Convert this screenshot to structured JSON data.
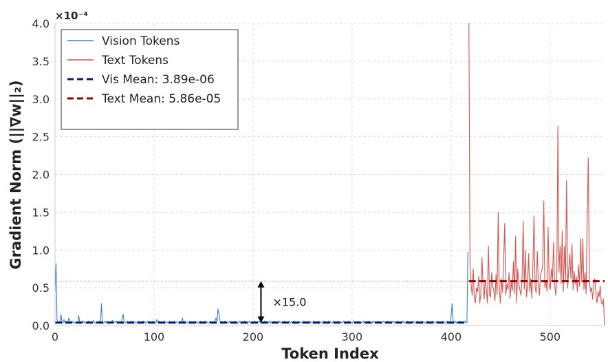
{
  "chart_data": {
    "type": "line",
    "xlabel": "Token Index",
    "ylabel": "Gradient Norm (||∇w||₂)",
    "y_offset_label": "×10⁻⁴",
    "xlim": [
      0,
      555
    ],
    "ylim": [
      0,
      4.0
    ],
    "xticks": [
      0,
      100,
      200,
      300,
      400,
      500
    ],
    "yticks": [
      0.0,
      0.5,
      1.0,
      1.5,
      2.0,
      2.5,
      3.0,
      3.5,
      4.0
    ],
    "grid": true,
    "legend_position": "top-left",
    "series": [
      {
        "name": "Vision Tokens",
        "color": "#3b82c4",
        "style": "solid",
        "x_range": [
          0,
          417
        ],
        "values": [
          0.42,
          0.82,
          0.08,
          0.05,
          0.03,
          0.04,
          0.15,
          0.05,
          0.03,
          0.08,
          0.04,
          0.06,
          0.03,
          0.05,
          0.1,
          0.04,
          0.03,
          0.06,
          0.04,
          0.05,
          0.03,
          0.04,
          0.03,
          0.05,
          0.13,
          0.04,
          0.03,
          0.05,
          0.04,
          0.06,
          0.03,
          0.04,
          0.05,
          0.03,
          0.06,
          0.04,
          0.03,
          0.05,
          0.04,
          0.07,
          0.03,
          0.04,
          0.05,
          0.03,
          0.04,
          0.06,
          0.03,
          0.29,
          0.04,
          0.03,
          0.05,
          0.04,
          0.06,
          0.03,
          0.04,
          0.05,
          0.03,
          0.04,
          0.07,
          0.03,
          0.05,
          0.04,
          0.06,
          0.03,
          0.04,
          0.05,
          0.03,
          0.04,
          0.1,
          0.15,
          0.05,
          0.04,
          0.03,
          0.06,
          0.04,
          0.03,
          0.05,
          0.04,
          0.06,
          0.03,
          0.04,
          0.05,
          0.03,
          0.04,
          0.06,
          0.03,
          0.05,
          0.04,
          0.03,
          0.06,
          0.04,
          0.05,
          0.03,
          0.04,
          0.06,
          0.03,
          0.05,
          0.04,
          0.03,
          0.06,
          0.04,
          0.05,
          0.03,
          0.08,
          0.04,
          0.06,
          0.03,
          0.04,
          0.05,
          0.03,
          0.04,
          0.06,
          0.03,
          0.05,
          0.04,
          0.03,
          0.06,
          0.04,
          0.05,
          0.03,
          0.04,
          0.06,
          0.03,
          0.05,
          0.04,
          0.03,
          0.06,
          0.04,
          0.05,
          0.1,
          0.04,
          0.06,
          0.03,
          0.04,
          0.05,
          0.03,
          0.04,
          0.06,
          0.03,
          0.05,
          0.04,
          0.03,
          0.06,
          0.04,
          0.05,
          0.03,
          0.04,
          0.06,
          0.03,
          0.05,
          0.04,
          0.03,
          0.06,
          0.04,
          0.05,
          0.03,
          0.04,
          0.06,
          0.03,
          0.05,
          0.04,
          0.03,
          0.06,
          0.1,
          0.05,
          0.22,
          0.15,
          0.06,
          0.03,
          0.05,
          0.04,
          0.03,
          0.06,
          0.04,
          0.05,
          0.03,
          0.04,
          0.06,
          0.03,
          0.05,
          0.04,
          0.03,
          0.06,
          0.04,
          0.05,
          0.03,
          0.04,
          0.06,
          0.03,
          0.05,
          0.04,
          0.03,
          0.06,
          0.04,
          0.05,
          0.03,
          0.04,
          0.06,
          0.03,
          0.05,
          0.04,
          0.03,
          0.06,
          0.04,
          0.05,
          0.03,
          0.04,
          0.06,
          0.03,
          0.05,
          0.04,
          0.03,
          0.06,
          0.04,
          0.05,
          0.03,
          0.04,
          0.06,
          0.03,
          0.05,
          0.04,
          0.03,
          0.06,
          0.04,
          0.05,
          0.03,
          0.04,
          0.06,
          0.03,
          0.05,
          0.04,
          0.03,
          0.06,
          0.04,
          0.05,
          0.03,
          0.04,
          0.06,
          0.03,
          0.05,
          0.04,
          0.03,
          0.06,
          0.04,
          0.05,
          0.03,
          0.04,
          0.06,
          0.03,
          0.05,
          0.04,
          0.03,
          0.06,
          0.04,
          0.05,
          0.03,
          0.04,
          0.06,
          0.03,
          0.05,
          0.04,
          0.03,
          0.06,
          0.04,
          0.05,
          0.03,
          0.04,
          0.06,
          0.03,
          0.05,
          0.04,
          0.03,
          0.06,
          0.04,
          0.05,
          0.03,
          0.04,
          0.06,
          0.03,
          0.05,
          0.04,
          0.03,
          0.06,
          0.04,
          0.05,
          0.03,
          0.04,
          0.06,
          0.03,
          0.05,
          0.04,
          0.03,
          0.06,
          0.04,
          0.05,
          0.03,
          0.04,
          0.06,
          0.03,
          0.05,
          0.04,
          0.03,
          0.06,
          0.04,
          0.05,
          0.03,
          0.04,
          0.06,
          0.03,
          0.05,
          0.04,
          0.03,
          0.06,
          0.04,
          0.05,
          0.03,
          0.04,
          0.06,
          0.03,
          0.05,
          0.04,
          0.03,
          0.06,
          0.04,
          0.05,
          0.03,
          0.04,
          0.06,
          0.03,
          0.05,
          0.04,
          0.03,
          0.06,
          0.04,
          0.05,
          0.03,
          0.04,
          0.06,
          0.03,
          0.05,
          0.04,
          0.03,
          0.06,
          0.04,
          0.05,
          0.03,
          0.04,
          0.06,
          0.03,
          0.05,
          0.04,
          0.03,
          0.06,
          0.04,
          0.05,
          0.03,
          0.04,
          0.06,
          0.03,
          0.05,
          0.04,
          0.03,
          0.06,
          0.04,
          0.05,
          0.03,
          0.04,
          0.06,
          0.03,
          0.05,
          0.04,
          0.03,
          0.06,
          0.04,
          0.05,
          0.03,
          0.04,
          0.06,
          0.03,
          0.05,
          0.04,
          0.03,
          0.06,
          0.04,
          0.05,
          0.03,
          0.04,
          0.06,
          0.03,
          0.05,
          0.04,
          0.03,
          0.06,
          0.04,
          0.05,
          0.03,
          0.04,
          0.06,
          0.03,
          0.05,
          0.04,
          0.12,
          0.29,
          0.05,
          0.04,
          0.06,
          0.03,
          0.05,
          0.04,
          0.03,
          0.06,
          0.04,
          0.05,
          0.03,
          0.04,
          0.06,
          0.03,
          0.05,
          0.98
        ]
      },
      {
        "name": "Text Tokens",
        "color": "#d9534f",
        "style": "solid",
        "x_range": [
          418,
          555
        ],
        "values": [
          4.0,
          0.85,
          0.55,
          0.4,
          0.75,
          0.35,
          0.3,
          0.5,
          0.45,
          0.65,
          0.3,
          0.42,
          0.9,
          0.55,
          0.35,
          0.6,
          0.48,
          0.3,
          1.05,
          0.4,
          0.38,
          0.7,
          0.52,
          0.45,
          0.33,
          0.68,
          0.41,
          1.5,
          0.5,
          0.3,
          0.62,
          0.44,
          0.85,
          1.35,
          0.4,
          0.55,
          0.48,
          0.7,
          0.36,
          0.58,
          0.46,
          0.85,
          0.42,
          1.18,
          0.3,
          0.75,
          0.55,
          0.47,
          0.4,
          0.64,
          1.38,
          0.48,
          1.0,
          0.38,
          0.52,
          0.95,
          0.45,
          0.62,
          0.36,
          0.82,
          1.45,
          0.5,
          0.43,
          0.98,
          0.58,
          0.4,
          0.68,
          0.72,
          0.8,
          1.65,
          0.5,
          0.6,
          0.45,
          1.3,
          0.52,
          0.48,
          0.75,
          0.6,
          1.1,
          0.55,
          0.4,
          0.65,
          2.64,
          0.7,
          1.05,
          0.55,
          1.25,
          0.45,
          1.05,
          0.6,
          1.92,
          0.5,
          0.75,
          0.95,
          0.62,
          1.08,
          0.48,
          0.72,
          0.55,
          0.65,
          0.45,
          0.8,
          0.52,
          1.15,
          0.58,
          1.15,
          0.48,
          0.7,
          0.42,
          1.38,
          2.22,
          0.6,
          0.45,
          0.5,
          0.35,
          0.55,
          0.62,
          0.4,
          0.3,
          0.45,
          0.38,
          0.52,
          0.3,
          0.28,
          0.35,
          0.0
        ]
      },
      {
        "name": "Vis Mean: 3.89e-06",
        "color": "#0d1b6e",
        "style": "dashed",
        "x_range": [
          0,
          417
        ],
        "value": 0.0389
      },
      {
        "name": "Text Mean: 5.86e-05",
        "color": "#8b0000",
        "style": "dashed",
        "x_range": [
          418,
          555
        ],
        "value": 0.586
      }
    ],
    "annotation": {
      "text": "×15.0",
      "x": 208,
      "y_from": 0.0389,
      "y_to": 0.586
    },
    "reference_line": {
      "y": 0.586,
      "x_range": [
        0,
        418
      ],
      "style": "dotted",
      "color": "#aaaaaa"
    }
  }
}
